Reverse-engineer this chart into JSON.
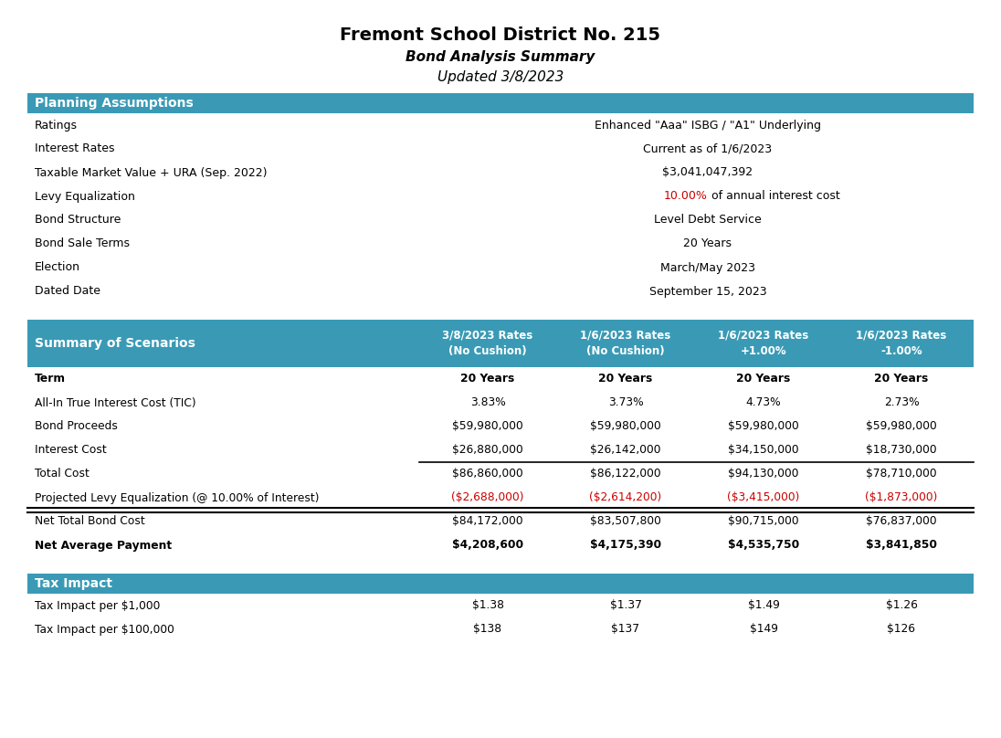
{
  "title": "Fremont School District No. 215",
  "subtitle1": "Bond Analysis Summary",
  "subtitle2": "Updated 3/8/2023",
  "header_color": "#3a9ab5",
  "header_text_color": "#ffffff",
  "bg_color": "#ffffff",
  "text_color": "#000000",
  "red_color": "#cc0000",
  "planning_section_title": "Planning Assumptions",
  "planning_rows": [
    [
      "Ratings",
      "Enhanced \"Aaa\" ISBG / \"A1\" Underlying",
      false
    ],
    [
      "Interest Rates",
      "Current as of 1/6/2023",
      false
    ],
    [
      "Taxable Market Value + URA (Sep. 2022)",
      "$3,041,047,392",
      false
    ],
    [
      "Levy Equalization",
      "10.00% of annual interest cost",
      true
    ],
    [
      "Bond Structure",
      "Level Debt Service",
      false
    ],
    [
      "Bond Sale Terms",
      "20 Years",
      false
    ],
    [
      "Election",
      "March/May 2023",
      false
    ],
    [
      "Dated Date",
      "September 15, 2023",
      false
    ]
  ],
  "levy_red_part": "10.00%",
  "levy_rest": " of annual interest cost",
  "scenario_section_title": "Summary of Scenarios",
  "scenario_cols": [
    "3/8/2023 Rates\n(No Cushion)",
    "1/6/2023 Rates\n(No Cushion)",
    "1/6/2023 Rates\n+1.00%",
    "1/6/2023 Rates\n-1.00%"
  ],
  "scenario_rows": [
    [
      "Term",
      "20 Years",
      "20 Years",
      "20 Years",
      "20 Years",
      true
    ],
    [
      "All-In True Interest Cost (TIC)",
      "3.83%",
      "3.73%",
      "4.73%",
      "2.73%",
      false
    ],
    [
      "Bond Proceeds",
      "$59,980,000",
      "$59,980,000",
      "$59,980,000",
      "$59,980,000",
      false
    ],
    [
      "Interest Cost",
      "$26,880,000",
      "$26,142,000",
      "$34,150,000",
      "$18,730,000",
      false
    ],
    [
      "Total Cost",
      "$86,860,000",
      "$86,122,000",
      "$94,130,000",
      "$78,710,000",
      false
    ],
    [
      "Projected Levy Equalization (@ 10.00% of Interest)",
      "($2,688,000)",
      "($2,614,200)",
      "($3,415,000)",
      "($1,873,000)",
      false
    ],
    [
      "Net Total Bond Cost",
      "$84,172,000",
      "$83,507,800",
      "$90,715,000",
      "$76,837,000",
      false
    ],
    [
      "Net Average Payment",
      "$4,208,600",
      "$4,175,390",
      "$4,535,750",
      "$3,841,850",
      true
    ]
  ],
  "tax_section_title": "Tax Impact",
  "tax_rows": [
    [
      "Tax Impact per $1,000",
      "$1.38",
      "$1.37",
      "$1.49",
      "$1.26"
    ],
    [
      "Tax Impact per $100,000",
      "$138",
      "$137",
      "$149",
      "$126"
    ]
  ]
}
